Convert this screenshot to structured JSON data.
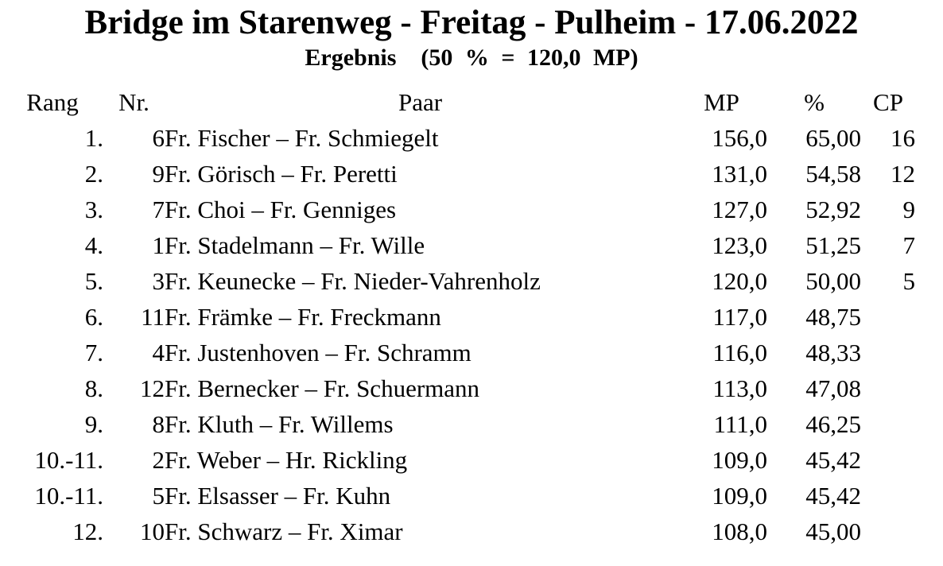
{
  "header": {
    "title": "Bridge im Starenweg - Freitag - Pulheim - 17.06.2022",
    "subtitle": "Ergebnis  (50 % = 120,0 MP)"
  },
  "table": {
    "columns": {
      "rang": "Rang",
      "nr": "Nr.",
      "paar": "Paar",
      "mp": "MP",
      "pct": "%",
      "cp": "CP"
    },
    "rows": [
      {
        "rang": "1.",
        "nr": "6",
        "paar": "Fr. Fischer – Fr. Schmiegelt",
        "mp": "156,0",
        "pct": "65,00",
        "cp": "16"
      },
      {
        "rang": "2.",
        "nr": "9",
        "paar": "Fr. Görisch – Fr. Peretti",
        "mp": "131,0",
        "pct": "54,58",
        "cp": "12"
      },
      {
        "rang": "3.",
        "nr": "7",
        "paar": "Fr. Choi – Fr. Genniges",
        "mp": "127,0",
        "pct": "52,92",
        "cp": "9"
      },
      {
        "rang": "4.",
        "nr": "1",
        "paar": "Fr. Stadelmann – Fr. Wille",
        "mp": "123,0",
        "pct": "51,25",
        "cp": "7"
      },
      {
        "rang": "5.",
        "nr": "3",
        "paar": "Fr. Keunecke – Fr. Nieder-Vahrenholz",
        "mp": "120,0",
        "pct": "50,00",
        "cp": "5"
      },
      {
        "rang": "6.",
        "nr": "11",
        "paar": "Fr. Främke – Fr. Freckmann",
        "mp": "117,0",
        "pct": "48,75",
        "cp": ""
      },
      {
        "rang": "7.",
        "nr": "4",
        "paar": "Fr. Justenhoven – Fr. Schramm",
        "mp": "116,0",
        "pct": "48,33",
        "cp": ""
      },
      {
        "rang": "8.",
        "nr": "12",
        "paar": "Fr. Bernecker – Fr. Schuermann",
        "mp": "113,0",
        "pct": "47,08",
        "cp": ""
      },
      {
        "rang": "9.",
        "nr": "8",
        "paar": "Fr. Kluth – Fr. Willems",
        "mp": "111,0",
        "pct": "46,25",
        "cp": ""
      },
      {
        "rang": "10.-11.",
        "nr": "2",
        "paar": "Fr. Weber – Hr. Rickling",
        "mp": "109,0",
        "pct": "45,42",
        "cp": ""
      },
      {
        "rang": "10.-11.",
        "nr": "5",
        "paar": "Fr. Elsasser – Fr. Kuhn",
        "mp": "109,0",
        "pct": "45,42",
        "cp": ""
      },
      {
        "rang": "12.",
        "nr": "10",
        "paar": "Fr. Schwarz – Fr. Ximar",
        "mp": "108,0",
        "pct": "45,00",
        "cp": ""
      }
    ]
  },
  "colors": {
    "text": "#000000",
    "background": "#ffffff"
  }
}
